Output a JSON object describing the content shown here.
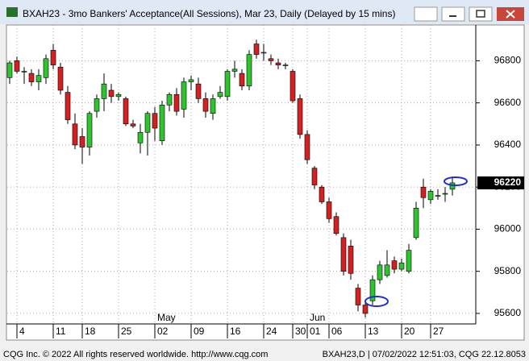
{
  "chart_data": {
    "type": "candlestick",
    "title": "BXAH23 - 3mo Bankers' Acceptance(All Sessions), Mar 23, Daily (Delayed by 15 mins)",
    "categories": [
      null,
      "4",
      null,
      null,
      null,
      null,
      "11",
      null,
      null,
      null,
      "18",
      null,
      null,
      null,
      null,
      "25",
      null,
      null,
      null,
      null,
      "02",
      null,
      null,
      null,
      null,
      "09",
      null,
      null,
      null,
      null,
      "16",
      null,
      null,
      null,
      null,
      "24",
      null,
      null,
      null,
      "30",
      null,
      "01",
      null,
      null,
      "06",
      null,
      null,
      null,
      null,
      "13",
      null,
      null,
      null,
      null,
      "20",
      null,
      null,
      null,
      "27",
      null,
      null,
      null
    ],
    "month_labels": [
      {
        "label": "May",
        "category": 20
      },
      {
        "label": "Jun",
        "category": 41
      }
    ],
    "open": [
      96720,
      96800,
      96750,
      96740,
      96700,
      96720,
      96850,
      96770,
      96650,
      96500,
      96440,
      96390,
      96560,
      96620,
      96660,
      96630,
      96620,
      96500,
      96410,
      96460,
      96550,
      96420,
      96590,
      96640,
      96570,
      96700,
      96690,
      96620,
      96550,
      96630,
      96630,
      96750,
      96740,
      96680,
      96880,
      96840,
      96810,
      96790,
      96780,
      96750,
      96620,
      96450,
      96290,
      96200,
      96130,
      96060,
      95960,
      95920,
      95720,
      95640,
      95660,
      95760,
      95780,
      95850,
      95810,
      95800,
      95960,
      96200,
      96140,
      96160,
      96170,
      96190
    ],
    "high": [
      96800,
      96820,
      96770,
      96760,
      96760,
      96830,
      96880,
      96790,
      96680,
      96550,
      96480,
      96560,
      96640,
      96740,
      96690,
      96650,
      96630,
      96520,
      96500,
      96560,
      96580,
      96610,
      96650,
      96670,
      96720,
      96730,
      96720,
      96650,
      96640,
      96680,
      96760,
      96800,
      96760,
      96850,
      96900,
      96880,
      96830,
      96810,
      96790,
      96760,
      96640,
      96470,
      96300,
      96210,
      96150,
      96080,
      95980,
      95950,
      95740,
      95660,
      95780,
      95850,
      95900,
      95870,
      95860,
      95930,
      96130,
      96240,
      96190,
      96190,
      96200,
      96250
    ],
    "low": [
      96690,
      96740,
      96690,
      96680,
      96660,
      96690,
      96760,
      96640,
      96500,
      96380,
      96310,
      96350,
      96530,
      96560,
      96600,
      96610,
      96490,
      96480,
      96360,
      96350,
      96420,
      96400,
      96560,
      96540,
      96530,
      96660,
      96600,
      96530,
      96520,
      96620,
      96610,
      96720,
      96660,
      96660,
      96810,
      96800,
      96780,
      96760,
      96760,
      96600,
      96430,
      96310,
      96190,
      96120,
      96030,
      95970,
      95780,
      95760,
      95610,
      95580,
      95640,
      95740,
      95770,
      95790,
      95800,
      95790,
      95950,
      96100,
      96120,
      96140,
      96130,
      96160
    ],
    "close": [
      96790,
      96750,
      96750,
      96700,
      96730,
      96810,
      96780,
      96660,
      96520,
      96400,
      96390,
      96550,
      96620,
      96690,
      96630,
      96640,
      96500,
      96490,
      96460,
      96550,
      96480,
      96590,
      96640,
      96560,
      96700,
      96710,
      96620,
      96560,
      96620,
      96650,
      96750,
      96760,
      96680,
      96830,
      96830,
      96840,
      96800,
      96780,
      96780,
      96610,
      96450,
      96330,
      96210,
      96130,
      96050,
      95980,
      95800,
      95790,
      95640,
      95600,
      95760,
      95830,
      95830,
      95810,
      95840,
      95900,
      96100,
      96150,
      96180,
      96160,
      96170,
      96220
    ],
    "up_color": "#2ec42e",
    "down_color": "#d42020",
    "ylim": [
      95550,
      96970
    ],
    "yticks": [
      95600,
      95800,
      96000,
      96200,
      96400,
      96600,
      96800
    ],
    "last_price": 96220,
    "grid": true
  },
  "footer_left": "CQG Inc. © 2022 All rights reserved worldwide. http://www.cqg.com",
  "footer_right": "BXAH23,D | 07/02/2022 12:51:03, CQG 22.12.8053"
}
